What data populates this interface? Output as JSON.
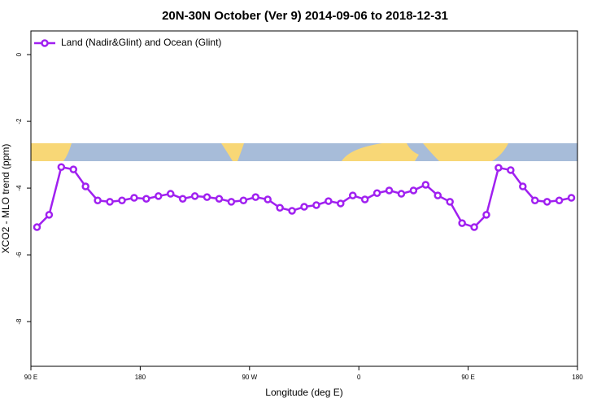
{
  "chart_data": {
    "type": "line",
    "title": "20N-30N October (Ver 9)   2014-09-06 to 2018-12-31",
    "xlabel": "Longitude (deg E)",
    "ylabel": "XCO2 - MLO trend (ppm)",
    "x": [
      95,
      105,
      115,
      125,
      135,
      145,
      155,
      165,
      175,
      185,
      195,
      205,
      215,
      225,
      235,
      245,
      255,
      265,
      275,
      285,
      295,
      305,
      315,
      325,
      335,
      345,
      355,
      365,
      375,
      385,
      395,
      405,
      415,
      425,
      435,
      445,
      455,
      465,
      475,
      485,
      495,
      505,
      515,
      525,
      535
    ],
    "series": [
      {
        "name": "Land (Nadir&Glint) and Ocean (Glint)",
        "color": "#a020f0",
        "values": [
          -5.17,
          -4.8,
          -3.37,
          -3.44,
          -3.95,
          -4.37,
          -4.41,
          -4.37,
          -4.29,
          -4.32,
          -4.24,
          -4.17,
          -4.32,
          -4.24,
          -4.27,
          -4.32,
          -4.41,
          -4.37,
          -4.27,
          -4.34,
          -4.59,
          -4.68,
          -4.56,
          -4.51,
          -4.39,
          -4.46,
          -4.22,
          -4.34,
          -4.15,
          -4.07,
          -4.17,
          -4.07,
          -3.9,
          -4.22,
          -4.41,
          -5.05,
          -5.17,
          -4.8,
          -3.39,
          -3.46,
          -3.95,
          -4.37,
          -4.41,
          -4.37,
          -4.29
        ]
      }
    ],
    "xlim": [
      90,
      540
    ],
    "xticks": [
      {
        "value": 90,
        "label": "90 E"
      },
      180,
      {
        "value": 270,
        "label": "90 W"
      },
      {
        "value": 360,
        "label": "0"
      },
      {
        "value": 450,
        "label": "90 E"
      },
      {
        "value": 540,
        "label": "180"
      }
    ],
    "ylim": [
      -9.34,
      0.71
    ],
    "yticks": [
      0,
      -2,
      -4,
      -6,
      -8
    ],
    "legend": "top-left"
  }
}
